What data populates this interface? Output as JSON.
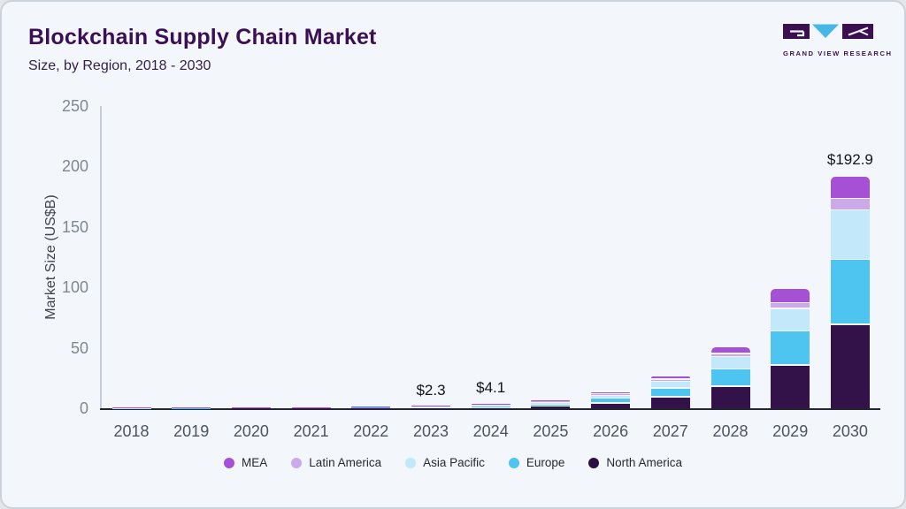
{
  "header": {
    "title": "Blockchain Supply Chain Market",
    "subtitle": "Size, by Region, 2018 - 2030"
  },
  "logo": {
    "text": "GRAND VIEW RESEARCH",
    "purple": "#3a1053",
    "cyan": "#45b8e8"
  },
  "chart_data": {
    "type": "bar",
    "stacked": true,
    "title": "Blockchain Supply Chain Market Size, by Region, 2018 - 2030",
    "xlabel": "",
    "ylabel": "Market Size (US$B)",
    "ylim": [
      0,
      250
    ],
    "yticks": [
      0,
      50,
      100,
      150,
      200,
      250
    ],
    "grid": false,
    "legend_position": "bottom",
    "categories": [
      "2018",
      "2019",
      "2020",
      "2021",
      "2022",
      "2023",
      "2024",
      "2025",
      "2026",
      "2027",
      "2028",
      "2029",
      "2030"
    ],
    "series": [
      {
        "name": "North America",
        "color": "#331249",
        "values": [
          0.05,
          0.09,
          0.16,
          0.27,
          0.47,
          0.83,
          1.48,
          2.45,
          5.0,
          9.9,
          18.7,
          36.3,
          70.0
        ]
      },
      {
        "name": "Europe",
        "color": "#4ec5f1",
        "values": [
          0.04,
          0.07,
          0.13,
          0.21,
          0.36,
          0.64,
          1.15,
          1.9,
          3.9,
          7.7,
          14.5,
          28.2,
          53.9
        ]
      },
      {
        "name": "Asia Pacific",
        "color": "#c3e8f9",
        "values": [
          0.03,
          0.05,
          0.09,
          0.15,
          0.26,
          0.46,
          0.82,
          1.36,
          2.8,
          5.5,
          10.2,
          18.8,
          40.8
        ]
      },
      {
        "name": "Latin America",
        "color": "#cba9ea",
        "values": [
          0.01,
          0.01,
          0.02,
          0.04,
          0.07,
          0.12,
          0.21,
          0.34,
          0.7,
          1.4,
          2.5,
          4.6,
          9.4
        ]
      },
      {
        "name": "MEA",
        "color": "#a651d5",
        "values": [
          0.02,
          0.03,
          0.05,
          0.08,
          0.14,
          0.25,
          0.44,
          0.75,
          1.6,
          3.0,
          5.5,
          11.7,
          18.8
        ]
      }
    ],
    "value_labels": {
      "2023": "$2.3",
      "2024": "$4.1",
      "2030": "$192.9"
    },
    "legend": [
      {
        "label": "MEA",
        "color": "#a651d5"
      },
      {
        "label": "Latin America",
        "color": "#cba9ea"
      },
      {
        "label": "Asia Pacific",
        "color": "#c3e8f9"
      },
      {
        "label": "Europe",
        "color": "#4ec5f1"
      },
      {
        "label": "North America",
        "color": "#2a1040"
      }
    ]
  }
}
